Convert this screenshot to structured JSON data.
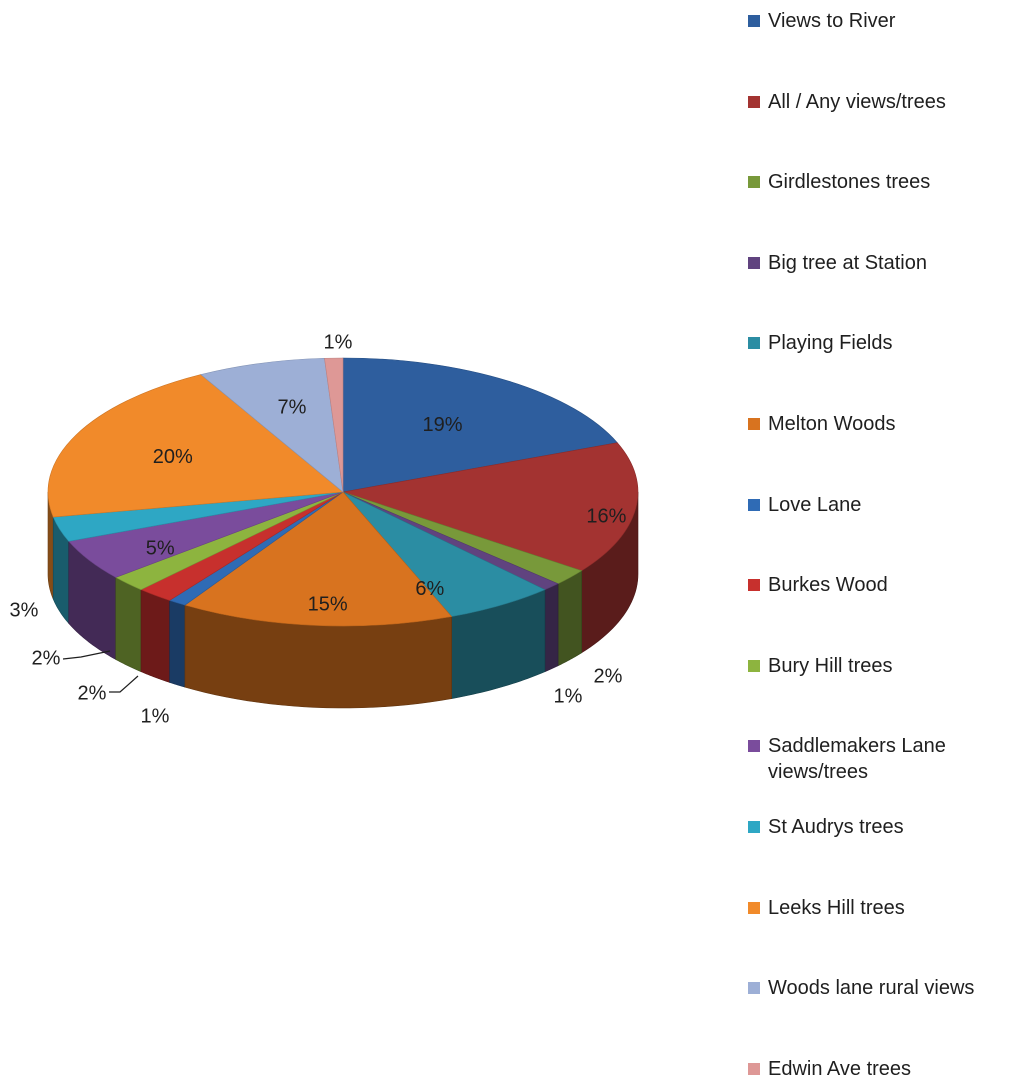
{
  "chart_data": {
    "type": "pie",
    "style": "3d-exploded-none",
    "title": "",
    "legend_position": "right",
    "categories": [
      "Views to River",
      "All / Any views/trees",
      "Girdlestones trees",
      "Big tree at Station",
      "Playing Fields",
      "Melton Woods",
      "Love Lane",
      "Burkes Wood",
      "Bury Hill trees",
      "Saddlemakers Lane views/trees",
      "St Audrys trees",
      "Leeks Hill trees",
      "Woods lane rural views",
      "Edwin Ave trees"
    ],
    "values": [
      19,
      16,
      2,
      1,
      6,
      15,
      1,
      2,
      2,
      5,
      3,
      20,
      7,
      1
    ],
    "data_labels": [
      "19%",
      "16%",
      "2%",
      "1%",
      "6%",
      "15%",
      "1%",
      "2%",
      "2%",
      "5%",
      "3%",
      "20%",
      "7%",
      "1%"
    ],
    "colors": [
      "#2E5E9E",
      "#A33331",
      "#78993A",
      "#60437F",
      "#2B8DA3",
      "#D8731F",
      "#2F6BB5",
      "#C7302D",
      "#8DB43F",
      "#7A4C9C",
      "#2EA7C4",
      "#F18A2A",
      "#9DAFD6",
      "#DE9896"
    ]
  }
}
